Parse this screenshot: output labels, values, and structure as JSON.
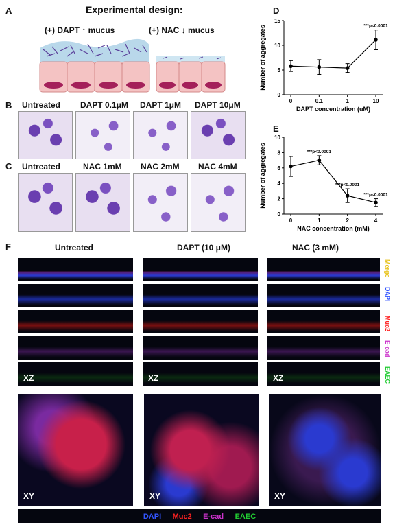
{
  "panels": {
    "A": "A",
    "B": "B",
    "C": "C",
    "D": "D",
    "E": "E",
    "F": "F"
  },
  "panelA": {
    "title": "Experimental design:",
    "left": "(+) DAPT ↑ mucus",
    "right": "(+) NAC ↓ mucus"
  },
  "panelB": {
    "labels": [
      "Untreated",
      "DAPT 0.1μM",
      "DAPT 1μM",
      "DAPT 10μM"
    ]
  },
  "panelC": {
    "labels": [
      "Untreated",
      "NAC 1mM",
      "NAC 2mM",
      "NAC 4mM"
    ]
  },
  "panelF": {
    "columns": [
      "Untreated",
      "DAPT (10 μM)",
      "NAC (3 mM)"
    ],
    "channels": [
      "Merge",
      "DAPI",
      "Muc2",
      "E-cad",
      "EAEC"
    ],
    "xz": "XZ",
    "xy": "XY",
    "legend": [
      "DAPI",
      "Muc2",
      "E-cad",
      "EAEC"
    ],
    "colors": {
      "DAPI": "#3355ff",
      "Muc2": "#ff2222",
      "E-cad": "#cc33cc",
      "EAEC": "#22cc33",
      "Merge": "#e8c21a"
    }
  },
  "chart_data": [
    {
      "type": "line",
      "panel": "D",
      "categories": [
        "0",
        "0.1",
        "1",
        "10"
      ],
      "values": [
        5.8,
        5.6,
        5.4,
        11.1
      ],
      "errors": [
        1.1,
        1.5,
        0.9,
        2.0
      ],
      "ylim": [
        0,
        15
      ],
      "yticks": [
        0,
        5,
        10,
        15
      ],
      "xlabel": "DAPT concentration (uM)",
      "ylabel": "Number of aggregates",
      "annotations": [
        {
          "index": 3,
          "text": "***p<0.0001"
        }
      ]
    },
    {
      "type": "line",
      "panel": "E",
      "categories": [
        "0",
        "1",
        "2",
        "4"
      ],
      "values": [
        6.2,
        7.0,
        2.4,
        1.5
      ],
      "errors": [
        1.3,
        0.6,
        0.9,
        0.5
      ],
      "ylim": [
        0,
        10
      ],
      "yticks": [
        0,
        2,
        4,
        6,
        8,
        10
      ],
      "xlabel": "NAC concentration (mM)",
      "ylabel": "Number of aggregates",
      "annotations": [
        {
          "index": 1,
          "text": "***p<0.0001"
        },
        {
          "index": 2,
          "text": "***p<0.0001"
        },
        {
          "index": 3,
          "text": "***p<0.0001"
        }
      ]
    }
  ]
}
